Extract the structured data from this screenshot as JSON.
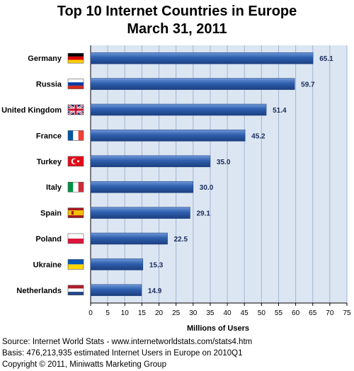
{
  "chart_data": {
    "type": "bar",
    "orientation": "horizontal",
    "title": "Top 10 Internet Countries in Europe",
    "subtitle": "March 31, 2011",
    "xlabel": "Millions of Users",
    "ylabel": "",
    "xlim": [
      0,
      75
    ],
    "xticks": [
      0,
      5,
      10,
      15,
      20,
      25,
      30,
      35,
      40,
      45,
      50,
      55,
      60,
      65,
      70,
      75
    ],
    "grid": true,
    "categories": [
      "Germany",
      "Russia",
      "United Kingdom",
      "France",
      "Turkey",
      "Italy",
      "Spain",
      "Poland",
      "Ukraine",
      "Netherlands"
    ],
    "values": [
      65.1,
      59.7,
      51.4,
      45.2,
      35.0,
      30.0,
      29.1,
      22.5,
      15.3,
      14.9
    ],
    "value_labels": [
      "65.1",
      "59.7",
      "51.4",
      "45.2",
      "35.0",
      "30.0",
      "29.1",
      "22.5",
      "15.3",
      "14.9"
    ],
    "flag_icons": [
      "germany-flag-icon",
      "russia-flag-icon",
      "united-kingdom-flag-icon",
      "france-flag-icon",
      "turkey-flag-icon",
      "italy-flag-icon",
      "spain-flag-icon",
      "poland-flag-icon",
      "ukraine-flag-icon",
      "netherlands-flag-icon"
    ],
    "colors": {
      "bar": "#2e5fae",
      "bar_dark": "#1c3f80",
      "plot_bg": "#dce6f2",
      "grid": "#9fb4d2",
      "value_text": "#1a2a5a"
    }
  },
  "footer": {
    "source": "Source: Internet World Stats  -  www.internetworldstats.com/stats4.htm",
    "basis": "Basis: 476,213,935 estimated Internet  Users in Europe on 2010Q1",
    "copyright": "Copyright © 2011, Miniwatts Marketing Group"
  }
}
